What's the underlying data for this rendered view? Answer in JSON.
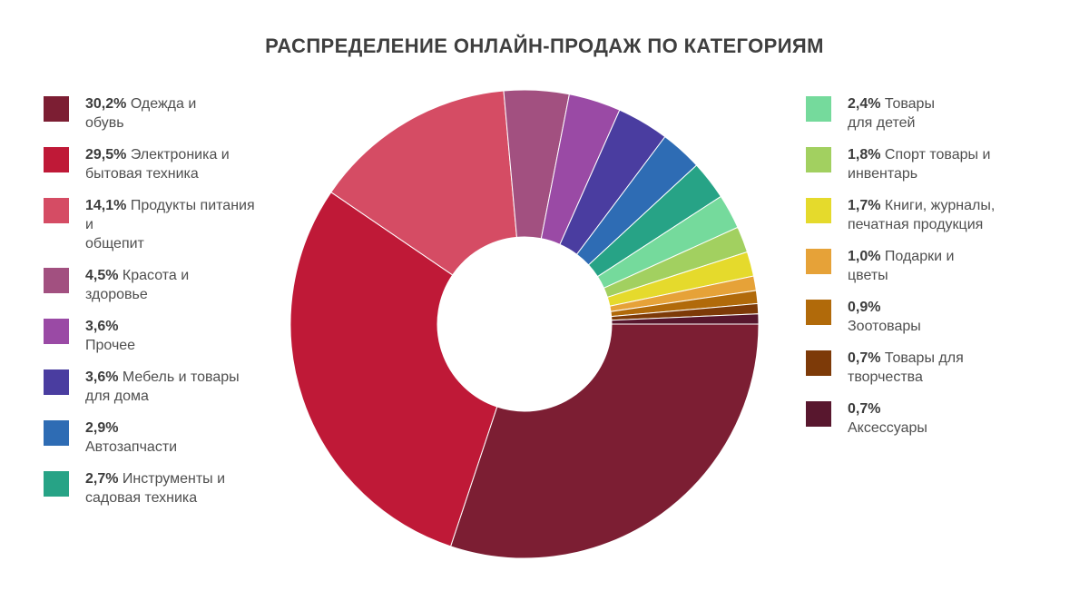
{
  "title": "РАСПРЕДЕЛЕНИЕ ОНЛАЙН-ПРОДАЖ ПО КАТЕГОРИЯМ",
  "legend": {
    "left": [
      {
        "pct": "30,2%",
        "line1": "Одежда и",
        "line2": "обувь",
        "color": "#7c1e33"
      },
      {
        "pct": "29,5%",
        "line1": "Электроника и",
        "line2": "бытовая техника",
        "color": "#bf1937"
      },
      {
        "pct": "14,1%",
        "line1": "Продукты питания и",
        "line2": "общепит",
        "color": "#d54c64"
      },
      {
        "pct": "4,5%",
        "line1": "Красота и",
        "line2": "здоровье",
        "color": "#a25080"
      },
      {
        "pct": "3,6%",
        "line1": "",
        "line2": "Прочее",
        "color": "#9a4aa5"
      },
      {
        "pct": "3,6%",
        "line1": "Мебель и товары",
        "line2": "для дома",
        "color": "#4a3da0"
      },
      {
        "pct": "2,9%",
        "line1": "",
        "line2": "Автозапчасти",
        "color": "#2e6cb4"
      },
      {
        "pct": "2,7%",
        "line1": "Инструменты и",
        "line2": "садовая техника",
        "color": "#27a386"
      }
    ],
    "right": [
      {
        "pct": "2,4%",
        "line1": "Товары",
        "line2": "для детей",
        "color": "#75da9c"
      },
      {
        "pct": "1,8%",
        "line1": "Спорт товары и",
        "line2": "инвентарь",
        "color": "#a2d060"
      },
      {
        "pct": "1,7%",
        "line1": "Книги, журналы,",
        "line2": "печатная продукция",
        "color": "#e5da2c"
      },
      {
        "pct": "1,0%",
        "line1": "Подарки и",
        "line2": "цветы",
        "color": "#e6a238"
      },
      {
        "pct": "0,9%",
        "line1": "",
        "line2": "Зоотовары",
        "color": "#b16a0a"
      },
      {
        "pct": "0,7%",
        "line1": "Товары для",
        "line2": "творчества",
        "color": "#7d3a08"
      },
      {
        "pct": "0,7%",
        "line1": "",
        "line2": "Аксессуары",
        "color": "#58172e"
      }
    ]
  },
  "chart_data": {
    "type": "pie",
    "title": "РАСПРЕДЕЛЕНИЕ ОНЛАЙН-ПРОДАЖ ПО КАТЕГОРИЯМ",
    "donut": true,
    "inner_radius_ratio": 0.372,
    "outer_radius_px": 258,
    "start_angle_deg": 0,
    "direction": "clockwise",
    "legend_position": "left-right",
    "categories": [
      "Одежда и обувь",
      "Электроника и бытовая техника",
      "Продукты питания и общепит",
      "Красота и здоровье",
      "Прочее",
      "Мебель и товары для дома",
      "Автозапчасти",
      "Инструменты и садовая техника",
      "Товары для детей",
      "Спорт товары и инвентарь",
      "Книги, журналы, печатная продукция",
      "Подарки и цветы",
      "Зоотовары",
      "Товары для творчества",
      "Аксессуары"
    ],
    "values": [
      30.2,
      29.5,
      14.1,
      4.5,
      3.6,
      3.6,
      2.9,
      2.7,
      2.4,
      1.8,
      1.7,
      1.0,
      0.9,
      0.7,
      0.7
    ],
    "colors": [
      "#7c1e33",
      "#bf1937",
      "#d54c64",
      "#a25080",
      "#9a4aa5",
      "#4a3da0",
      "#2e6cb4",
      "#27a386",
      "#75da9c",
      "#a2d060",
      "#e5da2c",
      "#e6a238",
      "#b16a0a",
      "#7d3a08",
      "#58172e"
    ]
  }
}
